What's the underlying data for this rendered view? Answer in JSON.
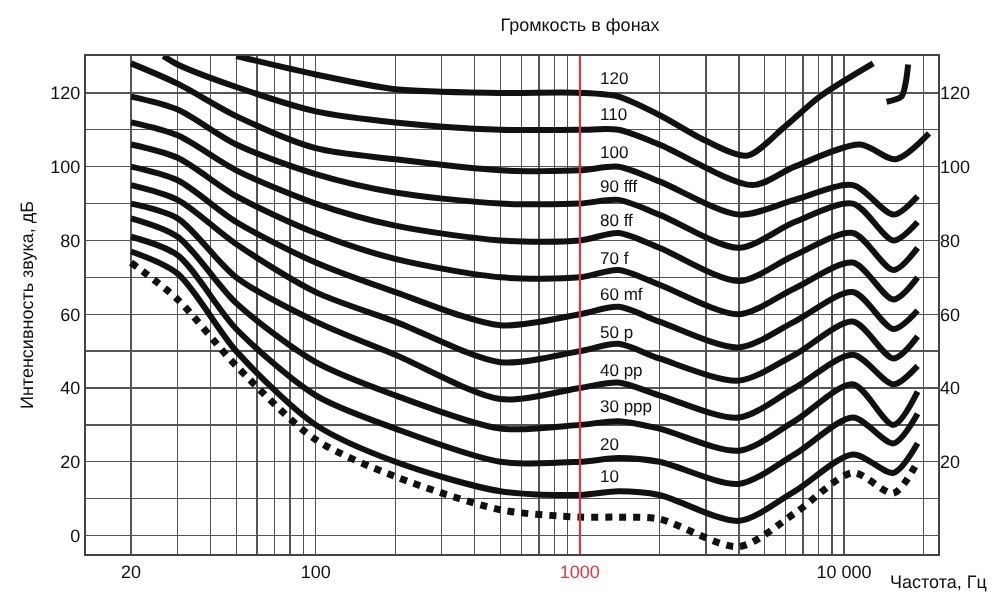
{
  "chart_data": {
    "type": "line",
    "title": "Громкость в фонах",
    "xlabel": "Частота, Гц",
    "ylabel": "Интенсивность звука, дБ",
    "log": "x",
    "grid": true,
    "xlim": [
      13.5,
      22700
    ],
    "xticks": [
      {
        "value": 20,
        "label": "20"
      },
      {
        "value": 30,
        "label": null
      },
      {
        "value": 40,
        "label": null
      },
      {
        "value": 50,
        "label": null
      },
      {
        "value": 60,
        "label": null
      },
      {
        "value": 70,
        "label": null
      },
      {
        "value": 80,
        "label": null
      },
      {
        "value": 90,
        "label": null
      },
      {
        "value": 100,
        "label": "100"
      },
      {
        "value": 200,
        "label": null
      },
      {
        "value": 300,
        "label": null
      },
      {
        "value": 400,
        "label": null
      },
      {
        "value": 500,
        "label": null
      },
      {
        "value": 600,
        "label": null
      },
      {
        "value": 700,
        "label": null
      },
      {
        "value": 800,
        "label": null
      },
      {
        "value": 900,
        "label": null
      },
      {
        "value": 1000,
        "label": "1000"
      },
      {
        "value": 2000,
        "label": null
      },
      {
        "value": 3000,
        "label": null
      },
      {
        "value": 4000,
        "label": null
      },
      {
        "value": 5000,
        "label": null
      },
      {
        "value": 6000,
        "label": null
      },
      {
        "value": 7000,
        "label": null
      },
      {
        "value": 8000,
        "label": null
      },
      {
        "value": 9000,
        "label": null
      },
      {
        "value": 10000,
        "label": "10 000"
      },
      {
        "value": 20000,
        "label": null
      }
    ],
    "ylim": [
      -5,
      130
    ],
    "yticks": [
      0,
      {
        "value": 10,
        "label": null
      },
      20,
      {
        "value": 30,
        "label": null
      },
      40,
      {
        "value": 50,
        "label": null
      },
      60,
      {
        "value": 70,
        "label": null
      },
      80,
      {
        "value": 90,
        "label": null
      },
      100,
      {
        "value": 110,
        "label": null
      },
      120
    ],
    "y2lim": [
      -5,
      130
    ],
    "y2ticks": [
      20,
      40,
      60,
      80,
      100,
      120
    ],
    "ref_lines": [
      {
        "axis": "x",
        "value": 1000,
        "color": "#e8373d"
      }
    ],
    "x": [
      20,
      30,
      50,
      100,
      200,
      500,
      1000,
      1400,
      2000,
      4000,
      6500,
      10800,
      15400,
      19000
    ],
    "series": [
      {
        "name": "120",
        "color": "#111111",
        "x": [
          50,
          100,
          200,
          500,
          1000,
          1400,
          2000,
          3000,
          4300,
          6000,
          8100,
          12900,
          13500,
          14500,
          16500,
          17100,
          17500
        ],
        "values": [
          130,
          125,
          121,
          120,
          120,
          119,
          114,
          107,
          103,
          111,
          119,
          128,
          null,
          117.6,
          119,
          122.5,
          127.7
        ]
      },
      {
        "name": "110",
        "color": "#111111",
        "x": [
          26.5,
          30,
          50,
          100,
          200,
          500,
          1000,
          1400,
          2000,
          4500,
          6500,
          11500,
          15700,
          21000
        ],
        "values": [
          130,
          127.7,
          121.6,
          115,
          112,
          110,
          110,
          110,
          106,
          95,
          100,
          106,
          102,
          109
        ]
      },
      {
        "name": "100",
        "color": "#111111",
        "values": [
          128,
          122.5,
          113.7,
          105,
          102,
          99,
          99,
          100,
          96,
          87,
          91,
          95,
          87,
          92
        ]
      },
      {
        "name": "90 fff",
        "color": "#111111",
        "values": [
          119,
          115.5,
          106,
          98,
          93,
          90,
          90,
          91,
          87,
          78,
          85,
          90,
          80,
          85
        ]
      },
      {
        "name": "80 ff",
        "color": "#111111",
        "values": [
          112,
          108.5,
          99,
          90,
          84,
          80,
          80,
          82,
          78,
          69,
          76,
          82,
          72,
          78
        ]
      },
      {
        "name": "70 f",
        "color": "#111111",
        "values": [
          106,
          102.4,
          92,
          82,
          75,
          70,
          70,
          72,
          68,
          60,
          67,
          74,
          64,
          70
        ]
      },
      {
        "name": "60 mf",
        "color": "#111111",
        "values": [
          100,
          96.3,
          85,
          74,
          66,
          57,
          60,
          62,
          58,
          51,
          58,
          66,
          56,
          61
        ]
      },
      {
        "name": "50 p",
        "color": "#111111",
        "values": [
          95,
          91,
          79,
          66,
          58,
          47,
          50,
          52,
          48,
          42,
          49,
          58,
          48,
          54
        ]
      },
      {
        "name": "40 pp",
        "color": "#111111",
        "values": [
          90,
          86,
          70,
          58,
          49,
          37,
          40,
          41.5,
          38,
          32,
          40,
          49,
          41,
          46
        ]
      },
      {
        "name": "30 ppp",
        "color": "#111111",
        "values": [
          86,
          81,
          63,
          47,
          38,
          29,
          30,
          31,
          29,
          23,
          31,
          41,
          30,
          39
        ]
      },
      {
        "name": "20",
        "color": "#111111",
        "values": [
          81,
          76,
          56,
          38,
          29,
          20,
          20,
          21,
          20,
          14,
          22,
          32,
          25,
          33
        ]
      },
      {
        "name": "10",
        "color": "#111111",
        "values": [
          77,
          71,
          50,
          30,
          20,
          12,
          11,
          12,
          11,
          4,
          12,
          22,
          17,
          25
        ]
      },
      {
        "color": "#111111",
        "line_style": "dotted",
        "values": [
          74,
          64,
          46,
          26,
          16,
          7,
          5,
          5,
          4.5,
          -3,
          6,
          17,
          11.5,
          20
        ]
      }
    ]
  }
}
